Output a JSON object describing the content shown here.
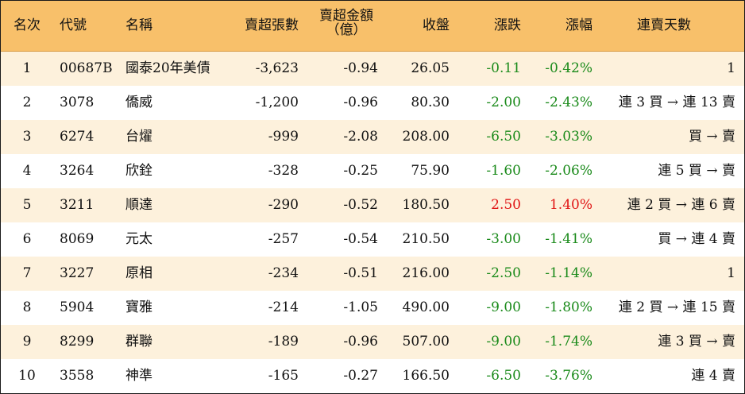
{
  "header": {
    "rank": "名次",
    "code": "代號",
    "name": "名稱",
    "lots": "賣超張數",
    "amount_line1": "賣超金額",
    "amount_line2": "（億）",
    "close": "收盤",
    "change": "漲跌",
    "pct": "漲幅",
    "streak": "連賣天數"
  },
  "colors": {
    "header_bg": "#f8c06a",
    "alt_row_bg": "#fdf1dc",
    "down": "#1a8a1a",
    "up": "#e01515"
  },
  "rows": [
    {
      "rank": "1",
      "code": "00687B",
      "name": "國泰20年美債",
      "lots": "-3,623",
      "amount": "-0.94",
      "close": "26.05",
      "change": "-0.11",
      "pct": "-0.42%",
      "streak": "1",
      "dir": "down"
    },
    {
      "rank": "2",
      "code": "3078",
      "name": "僑威",
      "lots": "-1,200",
      "amount": "-0.96",
      "close": "80.30",
      "change": "-2.00",
      "pct": "-2.43%",
      "streak": "連 3 買 → 連 13 賣",
      "dir": "down"
    },
    {
      "rank": "3",
      "code": "6274",
      "name": "台燿",
      "lots": "-999",
      "amount": "-2.08",
      "close": "208.00",
      "change": "-6.50",
      "pct": "-3.03%",
      "streak": "買 → 賣",
      "dir": "down"
    },
    {
      "rank": "4",
      "code": "3264",
      "name": "欣銓",
      "lots": "-328",
      "amount": "-0.25",
      "close": "75.90",
      "change": "-1.60",
      "pct": "-2.06%",
      "streak": "連 5 買 → 賣",
      "dir": "down"
    },
    {
      "rank": "5",
      "code": "3211",
      "name": "順達",
      "lots": "-290",
      "amount": "-0.52",
      "close": "180.50",
      "change": "2.50",
      "pct": "1.40%",
      "streak": "連 2 買 → 連 6 賣",
      "dir": "up"
    },
    {
      "rank": "6",
      "code": "8069",
      "name": "元太",
      "lots": "-257",
      "amount": "-0.54",
      "close": "210.50",
      "change": "-3.00",
      "pct": "-1.41%",
      "streak": "買 → 連 4 賣",
      "dir": "down"
    },
    {
      "rank": "7",
      "code": "3227",
      "name": "原相",
      "lots": "-234",
      "amount": "-0.51",
      "close": "216.00",
      "change": "-2.50",
      "pct": "-1.14%",
      "streak": "1",
      "dir": "down"
    },
    {
      "rank": "8",
      "code": "5904",
      "name": "寶雅",
      "lots": "-214",
      "amount": "-1.05",
      "close": "490.00",
      "change": "-9.00",
      "pct": "-1.80%",
      "streak": "連 2 買 → 連 15 賣",
      "dir": "down"
    },
    {
      "rank": "9",
      "code": "8299",
      "name": "群聯",
      "lots": "-189",
      "amount": "-0.96",
      "close": "507.00",
      "change": "-9.00",
      "pct": "-1.74%",
      "streak": "連 3 買 → 賣",
      "dir": "down"
    },
    {
      "rank": "10",
      "code": "3558",
      "name": "神準",
      "lots": "-165",
      "amount": "-0.27",
      "close": "166.50",
      "change": "-6.50",
      "pct": "-3.76%",
      "streak": "連 4 賣",
      "dir": "down"
    }
  ]
}
